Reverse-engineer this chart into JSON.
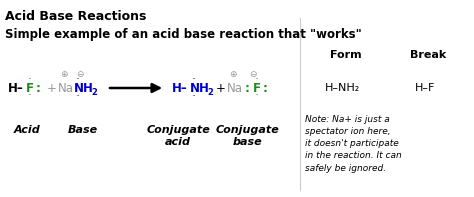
{
  "title": "Acid Base Reactions",
  "subtitle": "Simple example of an acid base reaction that \"works\"",
  "bg_color": "#ffffff",
  "figsize": [
    4.74,
    1.97
  ],
  "dpi": 100,
  "title_fontsize": 9.0,
  "subtitle_fontsize": 8.5,
  "note_text": "Note: Na+ is just a\nspectator ion here,\nit doesn't participate\nin the reaction. It can\nsafely be ignored."
}
